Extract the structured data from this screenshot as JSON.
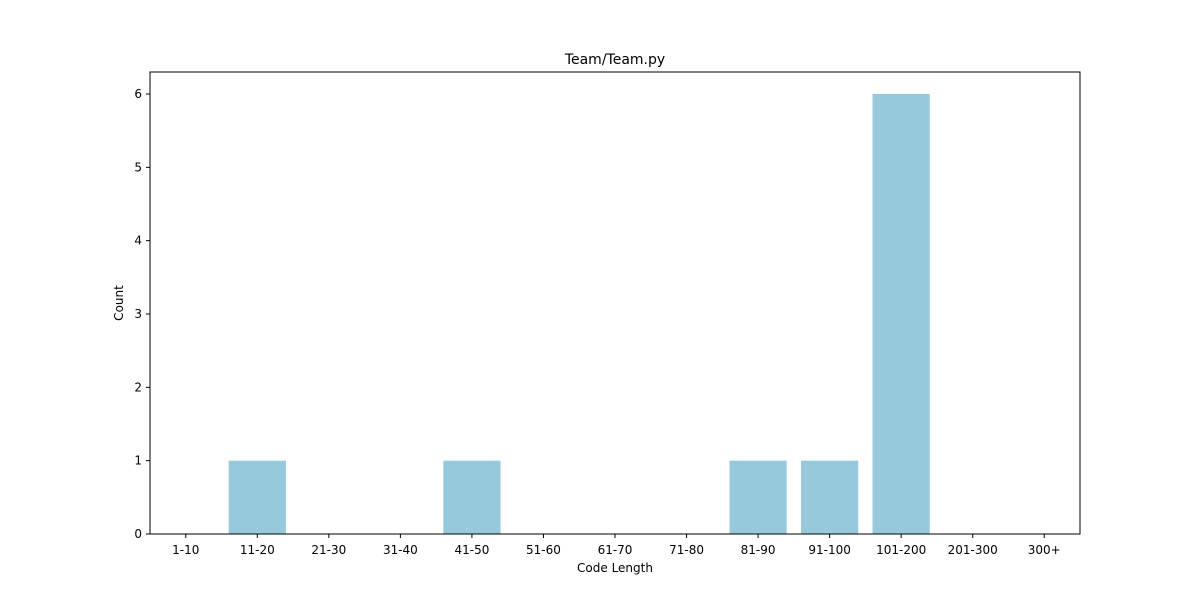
{
  "chart_data": {
    "type": "bar",
    "title": "Team/Team.py",
    "xlabel": "Code Length",
    "ylabel": "Count",
    "categories": [
      "1-10",
      "11-20",
      "21-30",
      "31-40",
      "41-50",
      "51-60",
      "61-70",
      "71-80",
      "81-90",
      "91-100",
      "101-200",
      "201-300",
      "300+"
    ],
    "values": [
      0,
      1,
      0,
      0,
      1,
      0,
      0,
      0,
      1,
      1,
      6,
      0,
      0
    ],
    "ylim": [
      0,
      6.3
    ],
    "yticks": [
      0,
      1,
      2,
      3,
      4,
      5,
      6
    ],
    "grid": false,
    "legend": "none",
    "bar_color": "#96c9dc"
  }
}
